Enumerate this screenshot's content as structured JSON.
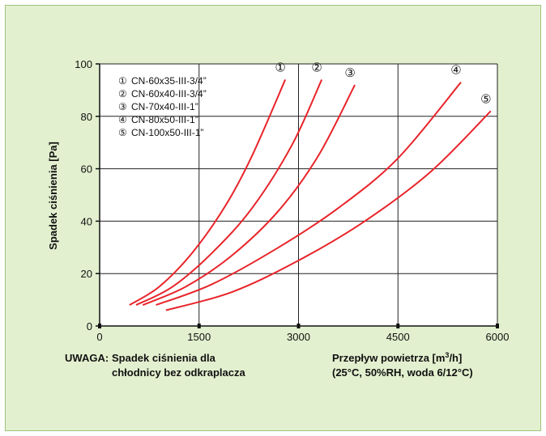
{
  "chart_data": {
    "type": "line",
    "title": "",
    "xlabel": "",
    "ylabel": "Spadek ciśnienia [Pa]",
    "xlim": [
      0,
      6000
    ],
    "ylim": [
      0,
      100
    ],
    "xticks": [
      0,
      1500,
      3000,
      4500,
      6000
    ],
    "yticks": [
      0,
      20,
      40,
      60,
      80,
      100
    ],
    "grid": true,
    "legend_position": "top-left",
    "series_color": "#e8242a",
    "series": [
      {
        "name": "CN-60x35-III-3/4”",
        "marker": "①",
        "x": [
          450,
          900,
          1400,
          1900,
          2300,
          2800
        ],
        "y": [
          8,
          15,
          28,
          46,
          65,
          94
        ]
      },
      {
        "name": "CN-60x40-III-3/4”",
        "marker": "②",
        "x": [
          550,
          1100,
          1700,
          2300,
          2900,
          3350
        ],
        "y": [
          8,
          15,
          28,
          45,
          69,
          94
        ]
      },
      {
        "name": "CN-70x40-III-1”",
        "marker": "③",
        "x": [
          650,
          1300,
          2000,
          2700,
          3300,
          3850
        ],
        "y": [
          8,
          15,
          27,
          44,
          65,
          92
        ]
      },
      {
        "name": "CN-80x50-III-1”",
        "marker": "④",
        "x": [
          850,
          1700,
          2700,
          3600,
          4500,
          5450
        ],
        "y": [
          8,
          16,
          30,
          45,
          64,
          93
        ]
      },
      {
        "name": "CN-100x50-III-1”",
        "marker": "⑤",
        "x": [
          1000,
          2000,
          3000,
          4000,
          5000,
          5900
        ],
        "y": [
          6,
          13,
          25,
          40,
          59,
          82
        ]
      }
    ]
  },
  "note": {
    "label": "UWAGA:",
    "line1": "Spadek ciśnienia dla",
    "line2": "chłodnicy bez odkraplacza"
  },
  "flow": {
    "line1_prefix": "Przepływ  powietrza [m",
    "line1_sup": "3",
    "line1_suffix": "/h]",
    "line2": "(25°C, 50%RH, woda 6/12°C)"
  }
}
